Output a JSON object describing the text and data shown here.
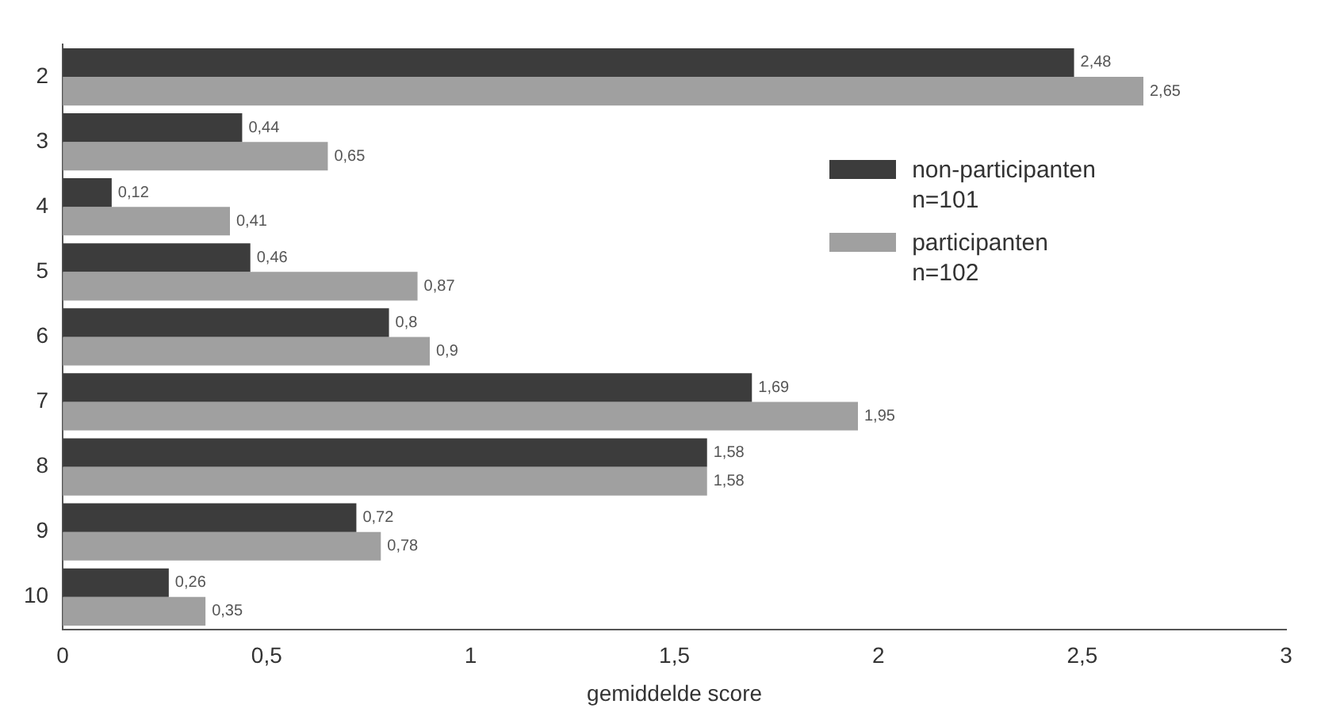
{
  "chart_data": {
    "type": "bar",
    "orientation": "horizontal",
    "xlabel": "gemiddelde score",
    "categories": [
      "2",
      "3",
      "4",
      "5",
      "6",
      "7",
      "8",
      "9",
      "10"
    ],
    "series": [
      {
        "name": "non-participanten\nn=101",
        "color": "#3c3c3c",
        "values": [
          2.48,
          0.44,
          0.12,
          0.46,
          0.8,
          1.69,
          1.58,
          0.72,
          0.26
        ],
        "value_labels": [
          "2,48",
          "0,44",
          "0,12",
          "0,46",
          "0,8",
          "1,69",
          "1,58",
          "0,72",
          "0,26"
        ]
      },
      {
        "name": "participanten\nn=102",
        "color": "#a0a0a0",
        "values": [
          2.65,
          0.65,
          0.41,
          0.87,
          0.9,
          1.95,
          1.58,
          0.78,
          0.35
        ],
        "value_labels": [
          "2,65",
          "0,65",
          "0,41",
          "0,87",
          "0,9",
          "1,95",
          "1,58",
          "0,78",
          "0,35"
        ]
      }
    ],
    "xlim": [
      0,
      3
    ],
    "xticks": [
      0,
      {
        "value": 0.5,
        "label": "0,5"
      },
      1,
      {
        "value": 1.5,
        "label": "1,5"
      },
      2,
      {
        "value": 2.5,
        "label": "2,5"
      },
      3
    ],
    "grid": false,
    "legend": "right"
  }
}
